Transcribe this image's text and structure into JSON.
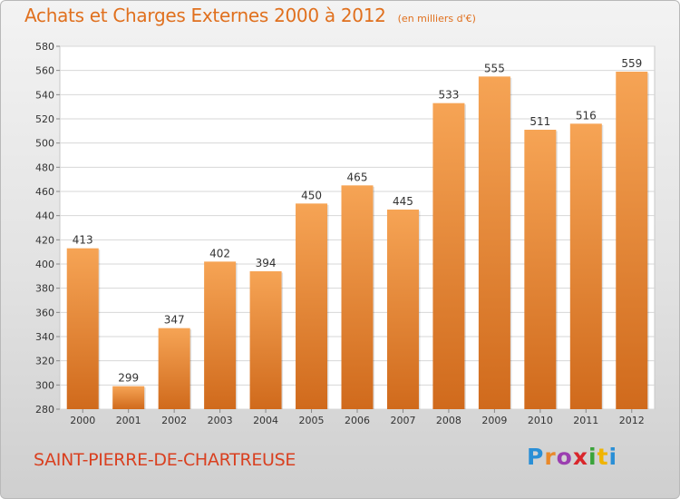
{
  "header": {
    "title": "Achats et Charges Externes 2000 à 2012",
    "subtitle": "(en milliers d'€)"
  },
  "footer": {
    "place": "SAINT-PIERRE-DE-CHARTREUSE",
    "logo": [
      "P",
      "r",
      "o",
      "x",
      "i",
      "t",
      "i"
    ],
    "logo_colors": [
      "#2a8fd6",
      "#e9892a",
      "#9b3fb0",
      "#d9262b",
      "#3aa33a",
      "#f0b400",
      "#2a8fd6"
    ]
  },
  "colors": {
    "title": "#e0701e",
    "place": "#d94020",
    "bar_light": "#f6a455",
    "bar_dark": "#d06a1c",
    "grid": "#d7d7d7",
    "plot_bg": "#ffffff",
    "label": "#333333"
  },
  "chart_data": {
    "type": "bar",
    "categories": [
      "2000",
      "2001",
      "2002",
      "2003",
      "2004",
      "2005",
      "2006",
      "2007",
      "2008",
      "2009",
      "2010",
      "2011",
      "2012"
    ],
    "values": [
      413,
      299,
      347,
      402,
      394,
      450,
      465,
      445,
      533,
      555,
      511,
      516,
      559
    ],
    "ylim": [
      280,
      580
    ],
    "yticks": [
      280,
      300,
      320,
      340,
      360,
      380,
      400,
      420,
      440,
      460,
      480,
      500,
      520,
      540,
      560,
      580
    ],
    "grid": true,
    "data_labels": true
  }
}
